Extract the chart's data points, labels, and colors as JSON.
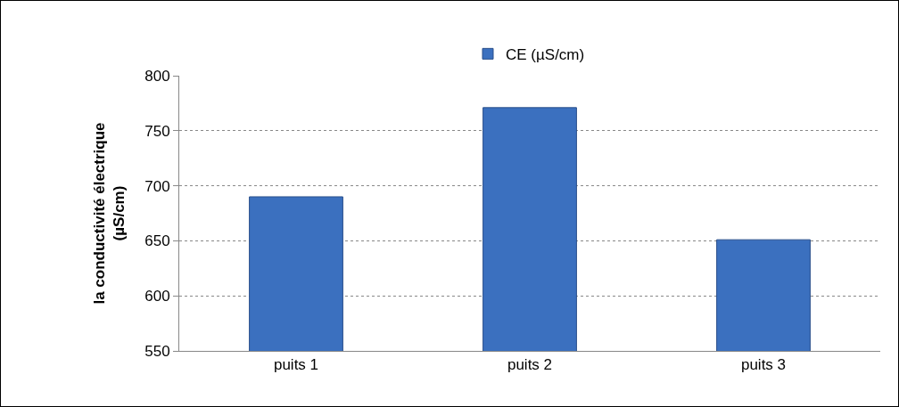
{
  "chart_data": {
    "type": "bar",
    "ylabel": "la conductivité électrique\n(µS/cm)",
    "categories": [
      "puits 1",
      "puits 2",
      "puits 3"
    ],
    "series": [
      {
        "name": "CE (µS/cm)",
        "color": "#3b70bf",
        "values": [
          690,
          771,
          651
        ]
      }
    ],
    "ylim": [
      550,
      800
    ],
    "yticks": [
      550,
      600,
      650,
      700,
      750,
      800
    ],
    "grid": "y",
    "legend": "top"
  }
}
